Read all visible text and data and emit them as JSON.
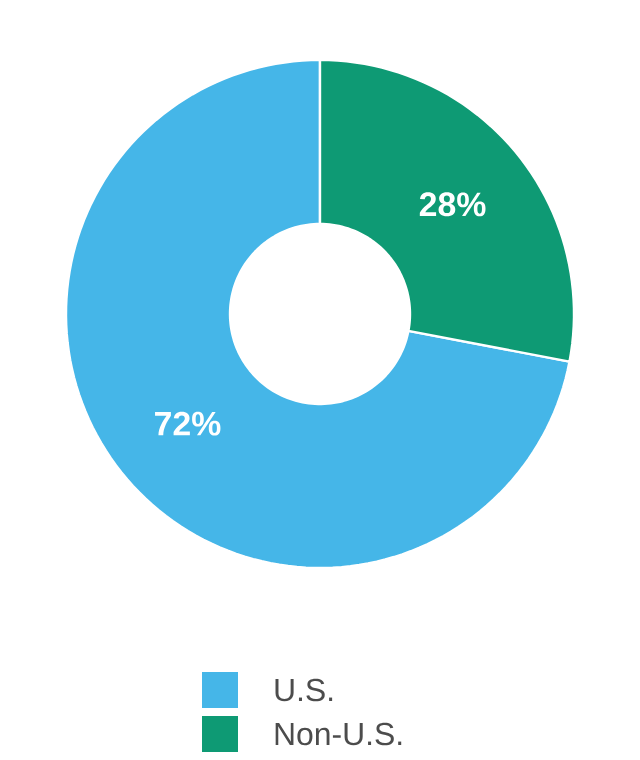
{
  "chart_data": {
    "type": "donut",
    "categories": [
      "U.S.",
      "Non-U.S."
    ],
    "values": [
      72,
      28
    ],
    "value_labels": [
      "72%",
      "28%"
    ],
    "colors": [
      "#45b6e8",
      "#0e9a74"
    ],
    "legend": "bottom"
  }
}
